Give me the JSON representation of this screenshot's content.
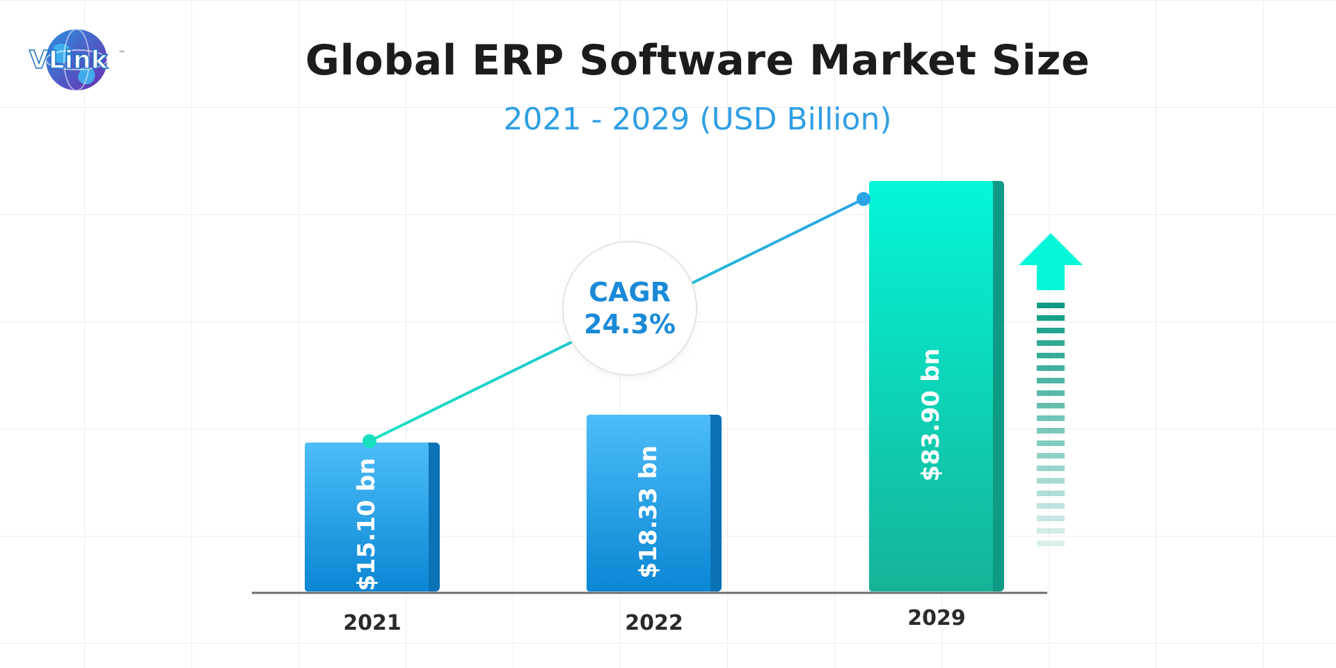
{
  "logo": {
    "text": "VLink",
    "trademark": "™"
  },
  "chart_data": {
    "type": "bar",
    "title": "Global ERP Software Market Size",
    "subtitle": "2021 - 2029 (USD Billion)",
    "categories": [
      "2021",
      "2022",
      "2029"
    ],
    "values": [
      15.1,
      18.33,
      83.9
    ],
    "value_labels": [
      "$15.10 bn",
      "$18.33 bn",
      "$83.90 bn"
    ],
    "unit": "USD Billion",
    "annotation": {
      "label": "CAGR",
      "value": "24.3%"
    },
    "trend_line": true,
    "grid": true,
    "colors": {
      "bar_blue_top": "#4dbdf8",
      "bar_blue_bottom": "#0a86d4",
      "bar_blue_side": "#0c72b6",
      "bar_teal_top": "#04f6d9",
      "bar_teal_bottom": "#15b398",
      "bar_teal_side": "#0e9a84",
      "line_start": "#16e0c0",
      "line_end": "#2aa4e6"
    }
  }
}
